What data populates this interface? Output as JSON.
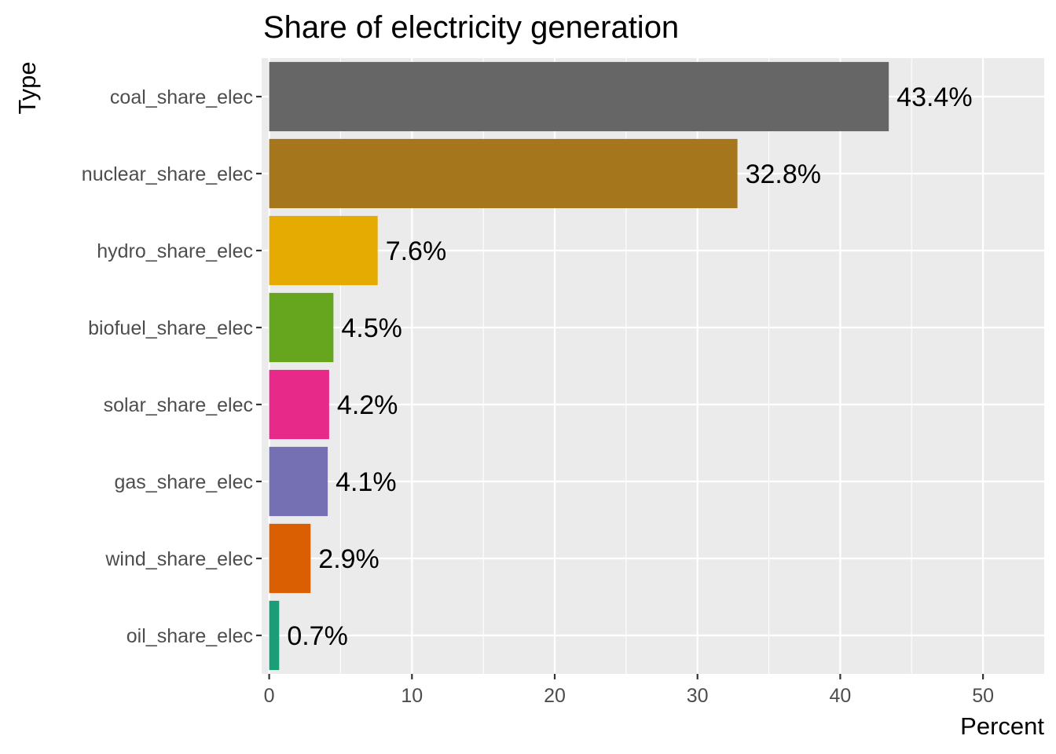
{
  "chart_data": {
    "type": "bar",
    "orientation": "horizontal",
    "title": "Share of electricity generation",
    "xlabel": "Percent",
    "ylabel": "Type",
    "xlim": [
      0,
      54
    ],
    "x_ticks": [
      0,
      10,
      20,
      30,
      40,
      50
    ],
    "grid": true,
    "legend": "none",
    "categories": [
      "coal_share_elec",
      "nuclear_share_elec",
      "hydro_share_elec",
      "biofuel_share_elec",
      "solar_share_elec",
      "gas_share_elec",
      "wind_share_elec",
      "oil_share_elec"
    ],
    "values": [
      43.4,
      32.8,
      7.6,
      4.5,
      4.2,
      4.1,
      2.9,
      0.7
    ],
    "data_labels": [
      "43.4%",
      "32.8%",
      "7.6%",
      "4.5%",
      "4.2%",
      "4.1%",
      "2.9%",
      "0.7%"
    ],
    "colors": [
      "#666666",
      "#A6761D",
      "#E6AB02",
      "#66A61E",
      "#E7298A",
      "#7570B3",
      "#D95F02",
      "#1B9E77"
    ],
    "panel_background": "#EBEBEB",
    "gridline_color": "#FFFFFF"
  }
}
